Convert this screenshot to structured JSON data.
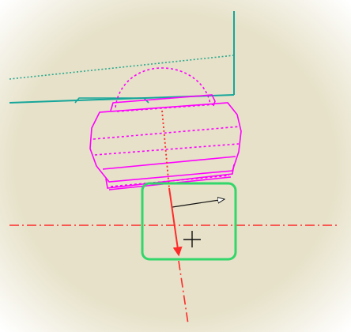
{
  "viewport": {
    "background": "#e6e1c8",
    "vignette": "#ffffff"
  },
  "colors": {
    "teal": "#16a69a",
    "teal_dotted": "#2aa88f",
    "magenta": "#ff00ff",
    "centerline_red": "#ff2a2a",
    "arrow_red": "#ff2a2a",
    "selection_green": "#33d66a",
    "cursor_black": "#111111"
  },
  "icons": {
    "cursor": "crosshair-plus-icon",
    "direction": "direction-arrow-icon"
  }
}
